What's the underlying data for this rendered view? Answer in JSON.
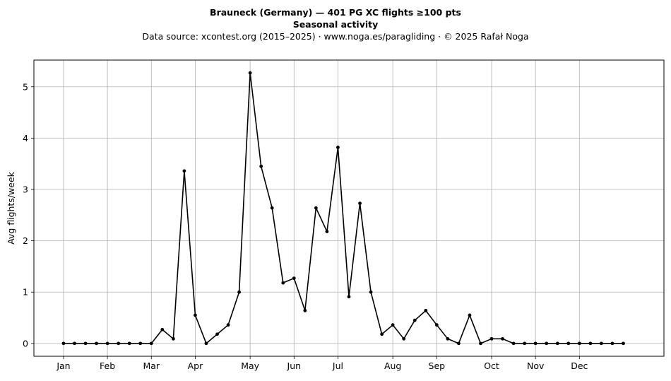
{
  "chart_data": {
    "type": "line",
    "title": "Brauneck (Germany)  —  401 PG XC flights ≥100 pts",
    "subtitle": "Seasonal activity",
    "source": "Data source: xcontest.org (2015–2025)  ·  www.noga.es/paragliding  ·  © 2025 Rafał Noga",
    "xlabel": "",
    "ylabel": "Avg flights/week",
    "ylim": [
      -0.25,
      5.52
    ],
    "xlim": [
      -2.7,
      54.7
    ],
    "grid": true,
    "x_ticks": [
      {
        "label": "Jan",
        "x": 0
      },
      {
        "label": "Feb",
        "x": 4
      },
      {
        "label": "Mar",
        "x": 8
      },
      {
        "label": "Apr",
        "x": 12
      },
      {
        "label": "May",
        "x": 17
      },
      {
        "label": "Jun",
        "x": 21
      },
      {
        "label": "Jul",
        "x": 25
      },
      {
        "label": "Aug",
        "x": 30
      },
      {
        "label": "Sep",
        "x": 34
      },
      {
        "label": "Oct",
        "x": 39
      },
      {
        "label": "Nov",
        "x": 43
      },
      {
        "label": "Dec",
        "x": 47
      }
    ],
    "y_ticks": [
      0,
      1,
      2,
      3,
      4,
      5
    ],
    "series": [
      {
        "color": "#000000",
        "x": [
          0,
          1,
          2,
          3,
          4,
          5,
          6,
          7,
          8,
          9,
          10,
          11,
          12,
          13,
          14,
          15,
          16,
          17,
          18,
          19,
          20,
          21,
          22,
          23,
          24,
          25,
          26,
          27,
          28,
          29,
          30,
          31,
          32,
          33,
          34,
          35,
          36,
          37,
          38,
          39,
          40,
          41,
          42,
          43,
          44,
          45,
          46,
          47,
          48,
          49,
          50,
          51
        ],
        "values": [
          0,
          0,
          0,
          0,
          0,
          0,
          0,
          0,
          0,
          0.27,
          0.09,
          3.36,
          0.55,
          0,
          0.18,
          0.36,
          1.0,
          5.27,
          3.45,
          2.64,
          1.18,
          1.27,
          0.64,
          2.64,
          2.18,
          3.82,
          0.91,
          2.73,
          1.0,
          0.18,
          0.36,
          0.09,
          0.45,
          0.64,
          0.36,
          0.09,
          0,
          0.55,
          0,
          0.09,
          0.09,
          0,
          0,
          0,
          0,
          0,
          0,
          0,
          0,
          0,
          0,
          0
        ]
      }
    ]
  }
}
